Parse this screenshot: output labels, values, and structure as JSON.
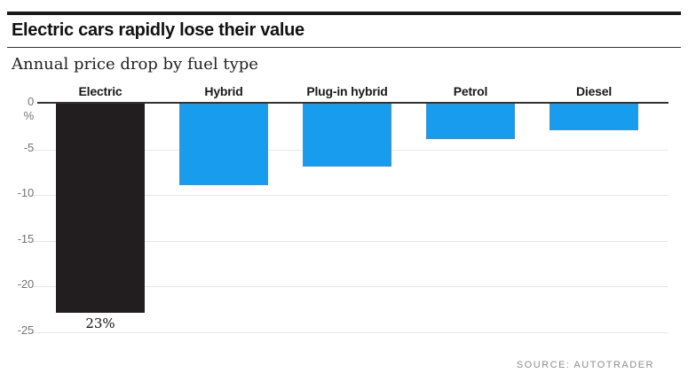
{
  "header": {
    "title": "Electric cars rapidly lose their value",
    "subtitle": "Annual price drop by fuel type"
  },
  "footer": {
    "source": "SOURCE: AUTOTRADER"
  },
  "colors": {
    "accent_black_bar": "#221e1f",
    "accent_blue": "#189dee",
    "axis_line": "#333333",
    "gridline": "#e6e6e6",
    "tick_label": "#757575",
    "source_text": "#8f8f8f"
  },
  "chart_data": {
    "type": "bar",
    "title": "Electric cars rapidly lose their value",
    "subtitle": "Annual price drop by fuel type",
    "categories": [
      "Electric",
      "Hybrid",
      "Plug-in hybrid",
      "Petrol",
      "Diesel"
    ],
    "values": [
      -23,
      -9,
      -7,
      -4,
      -3
    ],
    "bar_colors": [
      "#221e1f",
      "#189dee",
      "#189dee",
      "#189dee",
      "#189dee"
    ],
    "data_labels": [
      "23%",
      null,
      null,
      null,
      null
    ],
    "xlabel": "",
    "ylabel": "%",
    "yticks": [
      0,
      -5,
      -10,
      -15,
      -20,
      -25
    ],
    "ylim": [
      -25,
      0
    ],
    "grid": true,
    "legend_position": "none",
    "category_label_position": "above-bars",
    "source": "SOURCE: AUTOTRADER"
  }
}
